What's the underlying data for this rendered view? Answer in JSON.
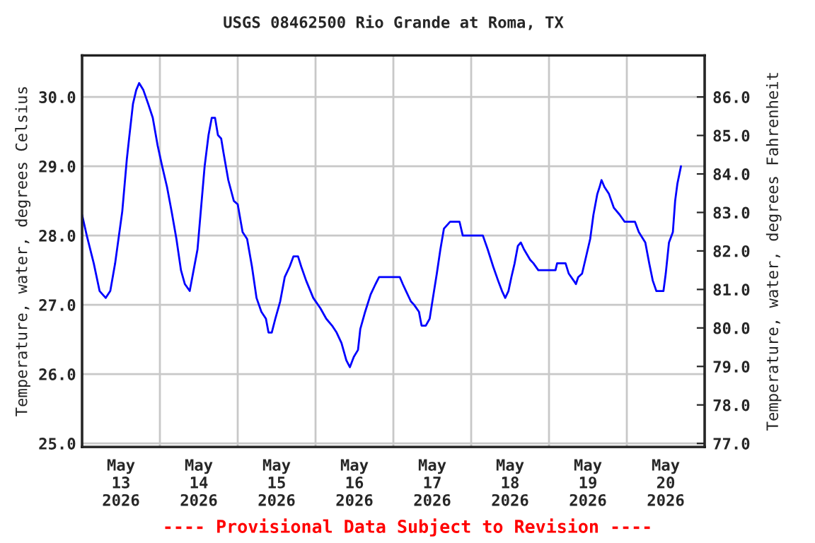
{
  "chart_data": {
    "type": "line",
    "title": "USGS 08462500 Rio Grande at Roma, TX",
    "ylabel": "Temperature, water, degrees Celsius",
    "y2label": "Temperature, water, degrees Fahrenheit",
    "annotations": [
      "---- Provisional Data Subject to Revision ----"
    ],
    "x": [
      "2026-05-13T00:00",
      "2026-05-13T01:27",
      "2026-05-13T03:36",
      "2026-05-13T05:24",
      "2026-05-13T07:18",
      "2026-05-13T08:42",
      "2026-05-13T10:12",
      "2026-05-13T12:24",
      "2026-05-13T13:48",
      "2026-05-13T14:30",
      "2026-05-13T15:42",
      "2026-05-13T16:42",
      "2026-05-13T17:36",
      "2026-05-13T18:54",
      "2026-05-13T20:24",
      "2026-05-13T21:48",
      "2026-05-13T23:18",
      "2026-05-14T00:42",
      "2026-05-14T02:12",
      "2026-05-14T03:36",
      "2026-05-14T05:06",
      "2026-05-14T06:30",
      "2026-05-14T07:42",
      "2026-05-14T09:12",
      "2026-05-14T10:12",
      "2026-05-14T11:36",
      "2026-05-14T12:42",
      "2026-05-14T13:48",
      "2026-05-14T15:00",
      "2026-05-14T16:00",
      "2026-05-14T17:00",
      "2026-05-14T17:54",
      "2026-05-14T18:54",
      "2026-05-14T19:36",
      "2026-05-14T21:06",
      "2026-05-14T22:48",
      "2026-05-15T00:00",
      "2026-05-15T01:30",
      "2026-05-15T02:54",
      "2026-05-15T04:24",
      "2026-05-15T05:48",
      "2026-05-15T07:18",
      "2026-05-15T08:42",
      "2026-05-15T09:30",
      "2026-05-15T10:30",
      "2026-05-15T11:36",
      "2026-05-15T13:06",
      "2026-05-15T14:30",
      "2026-05-15T16:00",
      "2026-05-15T17:12",
      "2026-05-15T18:36",
      "2026-05-15T19:36",
      "2026-05-15T21:06",
      "2026-05-15T23:18",
      "2026-05-16T01:30",
      "2026-05-16T03:18",
      "2026-05-16T05:06",
      "2026-05-16T06:30",
      "2026-05-16T08:00",
      "2026-05-16T09:30",
      "2026-05-16T10:36",
      "2026-05-16T11:48",
      "2026-05-16T13:06",
      "2026-05-16T13:48",
      "2026-05-16T15:18",
      "2026-05-16T17:00",
      "2026-05-16T18:30",
      "2026-05-16T19:36",
      "2026-05-17T02:00",
      "2026-05-17T02:54",
      "2026-05-17T03:54",
      "2026-05-17T05:24",
      "2026-05-17T06:24",
      "2026-05-17T07:54",
      "2026-05-17T08:42",
      "2026-05-17T10:00",
      "2026-05-17T11:12",
      "2026-05-17T12:12",
      "2026-05-17T13:24",
      "2026-05-17T14:30",
      "2026-05-17T15:36",
      "2026-05-17T17:30",
      "2026-05-17T20:24",
      "2026-05-17T21:24",
      "2026-05-18T03:36",
      "2026-05-18T05:06",
      "2026-05-18T06:48",
      "2026-05-18T08:18",
      "2026-05-18T09:30",
      "2026-05-18T10:30",
      "2026-05-18T11:30",
      "2026-05-18T12:24",
      "2026-05-18T13:24",
      "2026-05-18T14:24",
      "2026-05-18T15:18",
      "2026-05-18T16:18",
      "2026-05-18T18:12",
      "2026-05-18T19:12",
      "2026-05-18T20:42",
      "2026-05-19T02:00",
      "2026-05-19T02:30",
      "2026-05-19T05:06",
      "2026-05-19T06:06",
      "2026-05-19T07:36",
      "2026-05-19T08:18",
      "2026-05-19T09:00",
      "2026-05-19T10:12",
      "2026-05-19T11:12",
      "2026-05-19T12:42",
      "2026-05-19T13:42",
      "2026-05-19T14:54",
      "2026-05-19T15:36",
      "2026-05-19T16:12",
      "2026-05-19T17:06",
      "2026-05-19T18:30",
      "2026-05-19T20:00",
      "2026-05-19T21:48",
      "2026-05-19T23:18",
      "2026-05-20T02:30",
      "2026-05-20T03:42",
      "2026-05-20T05:42",
      "2026-05-20T06:54",
      "2026-05-20T08:00",
      "2026-05-20T09:06",
      "2026-05-20T11:18",
      "2026-05-20T12:00",
      "2026-05-20T13:00",
      "2026-05-20T14:12",
      "2026-05-20T14:54",
      "2026-05-20T15:36",
      "2026-05-20T16:42"
    ],
    "series": [
      {
        "color": "#0000ff",
        "values": [
          28.3,
          28.0,
          27.6,
          27.2,
          27.1,
          27.2,
          27.6,
          28.35,
          29.1,
          29.4,
          29.9,
          30.1,
          30.2,
          30.1,
          29.9,
          29.7,
          29.3,
          29.0,
          28.7,
          28.35,
          27.95,
          27.5,
          27.3,
          27.2,
          27.45,
          27.8,
          28.4,
          29.0,
          29.45,
          29.7,
          29.7,
          29.45,
          29.4,
          29.2,
          28.8,
          28.5,
          28.45,
          28.05,
          27.95,
          27.55,
          27.1,
          26.9,
          26.8,
          26.6,
          26.6,
          26.8,
          27.05,
          27.4,
          27.55,
          27.7,
          27.7,
          27.55,
          27.35,
          27.1,
          26.95,
          26.8,
          26.7,
          26.6,
          26.45,
          26.2,
          26.1,
          26.25,
          26.35,
          26.65,
          26.9,
          27.15,
          27.3,
          27.4,
          27.4,
          27.3,
          27.2,
          27.05,
          27.0,
          26.9,
          26.7,
          26.7,
          26.8,
          27.1,
          27.45,
          27.8,
          28.1,
          28.2,
          28.2,
          28.0,
          28.0,
          27.8,
          27.55,
          27.35,
          27.2,
          27.1,
          27.2,
          27.4,
          27.6,
          27.85,
          27.9,
          27.8,
          27.65,
          27.6,
          27.5,
          27.5,
          27.6,
          27.6,
          27.45,
          27.35,
          27.3,
          27.4,
          27.45,
          27.65,
          27.95,
          28.3,
          28.6,
          28.7,
          28.8,
          28.7,
          28.6,
          28.4,
          28.3,
          28.2,
          28.2,
          28.05,
          27.9,
          27.6,
          27.35,
          27.2,
          27.2,
          27.45,
          27.9,
          28.05,
          28.5,
          28.75,
          29.0
        ]
      }
    ],
    "xlim": [
      "2026-05-13T00:00",
      "2026-05-21T00:00"
    ],
    "xticks": [
      {
        "value": "2026-05-13T12:00",
        "label": "May\n13\n2026"
      },
      {
        "value": "2026-05-14T12:00",
        "label": "May\n14\n2026"
      },
      {
        "value": "2026-05-15T12:00",
        "label": "May\n15\n2026"
      },
      {
        "value": "2026-05-16T12:00",
        "label": "May\n16\n2026"
      },
      {
        "value": "2026-05-17T12:00",
        "label": "May\n17\n2026"
      },
      {
        "value": "2026-05-18T12:00",
        "label": "May\n18\n2026"
      },
      {
        "value": "2026-05-19T12:00",
        "label": "May\n19\n2026"
      },
      {
        "value": "2026-05-20T12:00",
        "label": "May\n20\n2026"
      },
      {
        "value": "2026-05-14T00:00",
        "label": null
      },
      {
        "value": "2026-05-15T00:00",
        "label": null
      },
      {
        "value": "2026-05-16T00:00",
        "label": null
      },
      {
        "value": "2026-05-17T00:00",
        "label": null
      },
      {
        "value": "2026-05-18T00:00",
        "label": null
      },
      {
        "value": "2026-05-19T00:00",
        "label": null
      },
      {
        "value": "2026-05-20T00:00",
        "label": null
      }
    ],
    "ylim": [
      24.95,
      30.6
    ],
    "yticks": [
      {
        "value": 25,
        "label": "25.0"
      },
      {
        "value": 26,
        "label": "26.0"
      },
      {
        "value": 27,
        "label": "27.0"
      },
      {
        "value": 28,
        "label": "28.0"
      },
      {
        "value": 29,
        "label": "29.0"
      },
      {
        "value": 30,
        "label": "30.0"
      }
    ],
    "y2lim": [
      76.91,
      87.08
    ],
    "y2ticks": [
      {
        "value": 77,
        "label": "77.0"
      },
      {
        "value": 78,
        "label": "78.0"
      },
      {
        "value": 79,
        "label": "79.0"
      },
      {
        "value": 80,
        "label": "80.0"
      },
      {
        "value": 81,
        "label": "81.0"
      },
      {
        "value": 82,
        "label": "82.0"
      },
      {
        "value": 83,
        "label": "83.0"
      },
      {
        "value": 84,
        "label": "84.0"
      },
      {
        "value": 85,
        "label": "85.0"
      },
      {
        "value": 86,
        "label": "86.0"
      }
    ],
    "grid": true,
    "legend": false
  }
}
